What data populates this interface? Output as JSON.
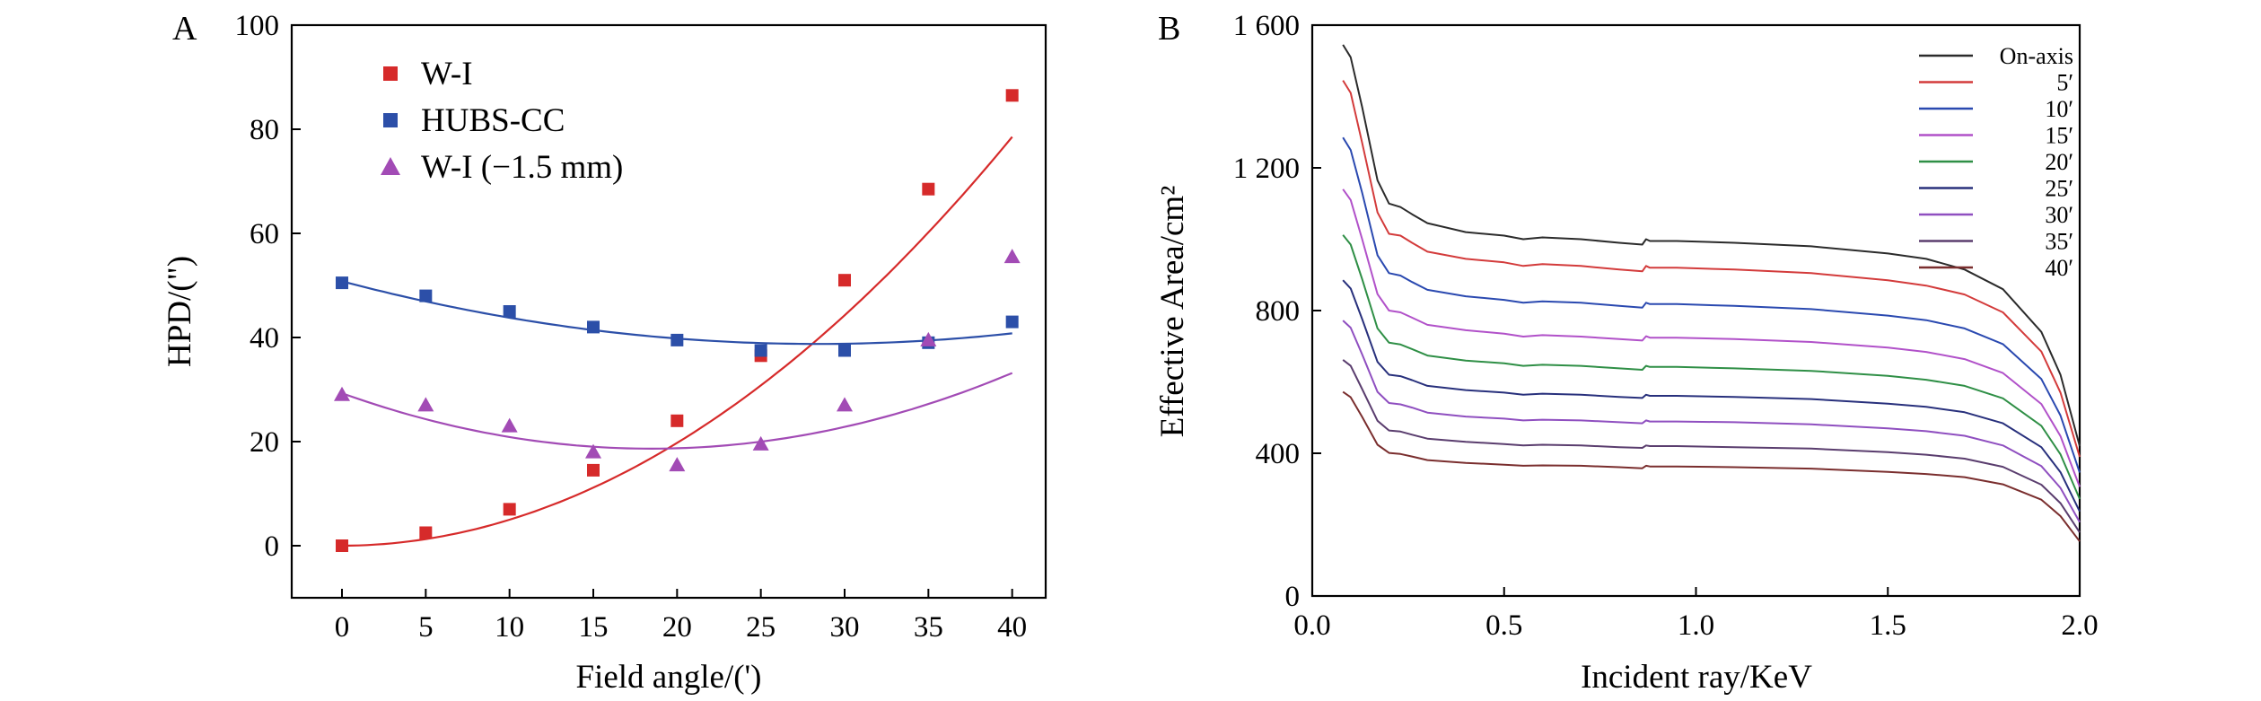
{
  "chart_data": [
    {
      "type": "scatter",
      "panel": "A",
      "xlabel": "Field angle/(')",
      "ylabel": "HPD/(\")",
      "xlim": [
        -3,
        42
      ],
      "ylim": [
        -10,
        100
      ],
      "xticks": [
        0,
        5,
        10,
        15,
        20,
        25,
        30,
        35,
        40
      ],
      "yticks": [
        0,
        20,
        40,
        60,
        80,
        100
      ],
      "xtick_labels": [
        "0",
        "5",
        "10",
        "15",
        "20",
        "25",
        "30",
        "35",
        "40"
      ],
      "ytick_labels": [
        "0",
        "20",
        "40",
        "60",
        "80",
        "100"
      ],
      "legend_position": "top-left",
      "series": [
        {
          "name": "W-I",
          "marker": "square",
          "color": "#d62a2a",
          "x": [
            0,
            5,
            10,
            15,
            20,
            25,
            30,
            35,
            40
          ],
          "values": [
            0,
            2.5,
            7,
            14.5,
            24,
            36.5,
            51,
            68.5,
            86.5
          ],
          "fit": [
            0.0,
            0.0115,
            0.0488
          ]
        },
        {
          "name": "HUBS-CC",
          "marker": "square",
          "color": "#2c4fa8",
          "x": [
            0,
            5,
            10,
            15,
            20,
            25,
            30,
            35,
            40
          ],
          "values": [
            50.5,
            48,
            45,
            42,
            39.5,
            37.5,
            37.5,
            39,
            43
          ],
          "fit": [
            50.8,
            -0.85,
            0.015
          ]
        },
        {
          "name": "W-I (−1.5 mm)",
          "marker": "triangle",
          "color": "#a24bb5",
          "x": [
            0,
            5,
            10,
            15,
            20,
            25,
            30,
            35,
            40
          ],
          "values": [
            29,
            27,
            23,
            18,
            15.5,
            19.5,
            27,
            39.5,
            55.5
          ],
          "fit": [
            29.3,
            -1.155,
            0.0313
          ]
        }
      ]
    },
    {
      "type": "line",
      "panel": "B",
      "xlabel": "Incident ray/KeV",
      "ylabel": "Effective Area/cm²",
      "xlim": [
        0,
        2.0
      ],
      "ylim": [
        0,
        1600
      ],
      "xticks": [
        0,
        0.5,
        1.0,
        1.5,
        2.0
      ],
      "yticks": [
        0,
        400,
        800,
        1200,
        1600
      ],
      "xtick_labels": [
        "0.0",
        "0.5",
        "1.0",
        "1.5",
        "2.0"
      ],
      "ytick_labels": [
        "0",
        "400",
        "800",
        "1 200",
        "1 600"
      ],
      "legend_position": "top-right",
      "x": [
        0.08,
        0.1,
        0.13,
        0.17,
        0.2,
        0.23,
        0.26,
        0.3,
        0.4,
        0.5,
        0.55,
        0.6,
        0.7,
        0.8,
        0.86,
        0.87,
        0.88,
        0.95,
        1.1,
        1.3,
        1.5,
        1.6,
        1.7,
        1.8,
        1.9,
        1.95,
        2.0
      ],
      "series": [
        {
          "name": "On-axis",
          "color": "#2b2b2b",
          "peak": 1545,
          "values": [
            1545,
            1510,
            1370,
            1165,
            1100,
            1090,
            1070,
            1045,
            1020,
            1010,
            1000,
            1005,
            1000,
            990,
            985,
            1000,
            995,
            995,
            990,
            980,
            960,
            945,
            915,
            860,
            740,
            620,
            420
          ]
        },
        {
          "name": "5′",
          "color": "#d33b3b",
          "peak": 1445,
          "values": [
            1445,
            1410,
            1270,
            1075,
            1015,
            1010,
            990,
            965,
            945,
            935,
            925,
            930,
            925,
            915,
            910,
            925,
            920,
            920,
            915,
            905,
            885,
            870,
            845,
            795,
            685,
            570,
            390
          ]
        },
        {
          "name": "10′",
          "color": "#2a49b0",
          "peak": 1285,
          "values": [
            1285,
            1250,
            1130,
            955,
            905,
            898,
            880,
            858,
            840,
            830,
            822,
            826,
            822,
            813,
            808,
            822,
            818,
            818,
            813,
            804,
            786,
            773,
            750,
            706,
            608,
            506,
            346
          ]
        },
        {
          "name": "15′",
          "color": "#b151c9",
          "peak": 1140,
          "values": [
            1140,
            1110,
            1000,
            846,
            800,
            795,
            780,
            760,
            745,
            735,
            727,
            731,
            727,
            720,
            716,
            728,
            724,
            724,
            720,
            712,
            696,
            684,
            664,
            625,
            538,
            448,
            306
          ]
        },
        {
          "name": "20′",
          "color": "#2f8f46",
          "peak": 1012,
          "values": [
            1012,
            985,
            888,
            750,
            710,
            705,
            692,
            674,
            660,
            652,
            645,
            648,
            645,
            638,
            634,
            645,
            642,
            642,
            638,
            631,
            617,
            606,
            589,
            554,
            477,
            397,
            272
          ]
        },
        {
          "name": "25′",
          "color": "#28307c",
          "peak": 885,
          "values": [
            885,
            862,
            776,
            656,
            620,
            616,
            605,
            589,
            577,
            570,
            564,
            567,
            564,
            558,
            555,
            564,
            561,
            561,
            558,
            552,
            539,
            530,
            515,
            484,
            417,
            347,
            237
          ]
        },
        {
          "name": "30′",
          "color": "#8f4fc0",
          "peak": 772,
          "values": [
            772,
            752,
            677,
            572,
            541,
            537,
            528,
            514,
            503,
            497,
            492,
            494,
            492,
            487,
            484,
            492,
            489,
            489,
            487,
            481,
            470,
            462,
            449,
            422,
            364,
            303,
            207
          ]
        },
        {
          "name": "35′",
          "color": "#5a3d6e",
          "peak": 662,
          "values": [
            662,
            645,
            580,
            491,
            464,
            461,
            452,
            441,
            432,
            426,
            422,
            424,
            422,
            417,
            415,
            422,
            420,
            420,
            417,
            413,
            403,
            396,
            385,
            362,
            312,
            260,
            178
          ]
        },
        {
          "name": "40′",
          "color": "#7a2e2e",
          "peak": 572,
          "values": [
            572,
            557,
            502,
            424,
            401,
            398,
            391,
            381,
            373,
            368,
            365,
            366,
            365,
            361,
            358,
            365,
            363,
            363,
            361,
            357,
            348,
            342,
            333,
            313,
            270,
            224,
            153
          ]
        }
      ]
    }
  ],
  "panels": {
    "a_letter": "A",
    "b_letter": "B"
  }
}
